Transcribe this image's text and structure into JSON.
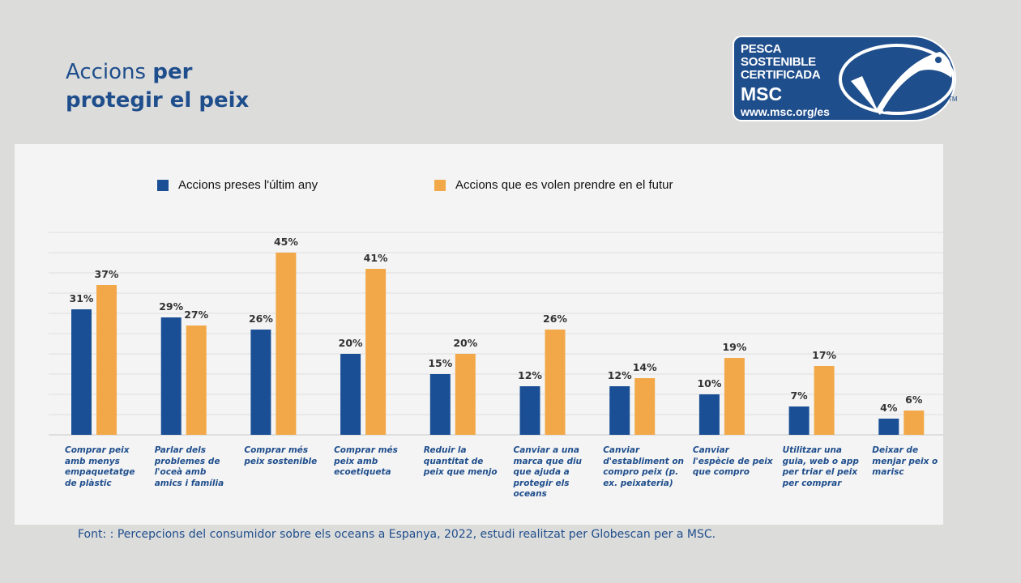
{
  "title": {
    "line1_normal": "Accions ",
    "line1_bold": "per",
    "line2_bold": "protegir el peix"
  },
  "logo": {
    "line1": "PESCA",
    "line2": "SOSTENIBLE",
    "line3": "CERTIFICADA",
    "brand": "MSC",
    "url": "www.msc.org/es",
    "tm": "TM",
    "color": "#1f4e8c"
  },
  "chart_data": {
    "type": "bar",
    "categories": [
      "Comprar peix amb menys empaquetatge de plàstic",
      "Parlar dels problemes de l'oceà amb amics i família",
      "Comprar més peix sostenible",
      "Comprar més peix amb ecoetiqueta",
      "Reduir la quantitat de peix que menjo",
      "Canviar a una marca que diu que ajuda a protegir els oceans",
      "Canviar d'establiment on compro peix (p. ex. peixateria)",
      "Canviar l'espècie de peix que compro",
      "Utilitzar una guia, web o app per triar el peix per comprar",
      "Deixar de menjar peix o marisc"
    ],
    "series": [
      {
        "name": "Accions preses l'últim any",
        "color": "#1a4f96",
        "values": [
          31,
          29,
          26,
          20,
          15,
          12,
          12,
          10,
          7,
          4
        ]
      },
      {
        "name": "Accions que es volen prendre en el futur",
        "color": "#f2a848",
        "values": [
          37,
          27,
          45,
          41,
          20,
          26,
          14,
          19,
          17,
          6
        ]
      }
    ],
    "value_suffix": "%",
    "ylim": [
      0,
      50
    ],
    "grid": true,
    "legend": "top-left"
  },
  "source": "Font: : Percepcions del consumidor sobre els oceans a Espanya, 2022, estudi realitzat per Globescan per a MSC."
}
